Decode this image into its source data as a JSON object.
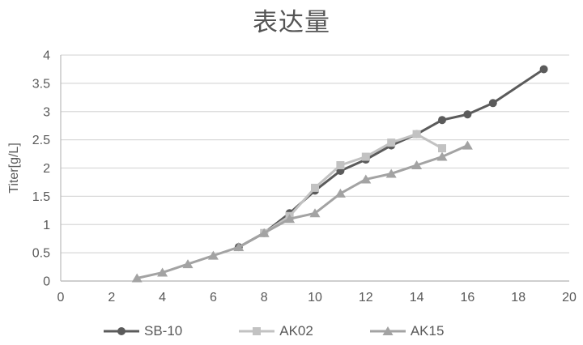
{
  "title": "表达量",
  "colors": {
    "title_text": "#545454",
    "axis_text": "#595959",
    "gridline": "#d9d9d9",
    "axis_line": "#bfbfbf"
  },
  "chart_data": {
    "type": "line",
    "title": "表达量",
    "xlabel": "",
    "ylabel": "Titer[g/L]",
    "xlim": [
      0,
      20
    ],
    "ylim": [
      0,
      4
    ],
    "xticks": [
      "0",
      "2",
      "4",
      "6",
      "8",
      "10",
      "12",
      "14",
      "16",
      "18",
      "20"
    ],
    "yticks": [
      "0",
      "0.5",
      "1",
      "1.5",
      "2",
      "2.5",
      "3",
      "3.5",
      "4"
    ],
    "grid": true,
    "legend_position": "bottom",
    "series": [
      {
        "name": "SB-10",
        "marker": "circle",
        "color": "#5b5b5b",
        "points": [
          [
            7,
            0.6
          ],
          [
            8,
            0.85
          ],
          [
            9,
            1.2
          ],
          [
            10,
            1.6
          ],
          [
            11,
            1.95
          ],
          [
            12,
            2.15
          ],
          [
            13,
            2.4
          ],
          [
            14,
            2.6
          ],
          [
            15,
            2.85
          ],
          [
            16,
            2.95
          ],
          [
            17,
            3.15
          ],
          [
            19,
            3.75
          ]
        ]
      },
      {
        "name": "AK02",
        "marker": "square",
        "color": "#c2c2c2",
        "points": [
          [
            8,
            0.85
          ],
          [
            9,
            1.15
          ],
          [
            10,
            1.65
          ],
          [
            11,
            2.05
          ],
          [
            12,
            2.2
          ],
          [
            13,
            2.45
          ],
          [
            14,
            2.6
          ],
          [
            15,
            2.35
          ]
        ]
      },
      {
        "name": "AK15",
        "marker": "triangle",
        "color": "#a3a3a3",
        "points": [
          [
            3,
            0.05
          ],
          [
            4,
            0.15
          ],
          [
            5,
            0.3
          ],
          [
            6,
            0.45
          ],
          [
            7,
            0.6
          ],
          [
            8,
            0.85
          ],
          [
            9,
            1.1
          ],
          [
            10,
            1.2
          ],
          [
            11,
            1.55
          ],
          [
            12,
            1.8
          ],
          [
            13,
            1.9
          ],
          [
            14,
            2.05
          ],
          [
            15,
            2.2
          ],
          [
            16,
            2.4
          ]
        ]
      }
    ]
  }
}
